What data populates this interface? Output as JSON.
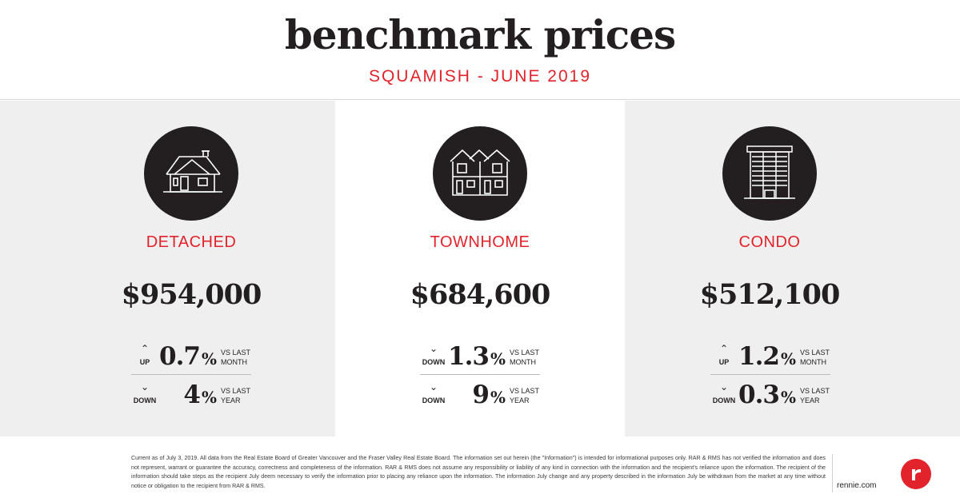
{
  "header": {
    "title": "benchmark prices",
    "subtitle": "SQUAMISH - JUNE 2019"
  },
  "categories": [
    {
      "icon": "detached-house-icon",
      "label": "DETACHED",
      "price": "$954,000",
      "changes": [
        {
          "arrow": "⌃",
          "direction": "UP",
          "value": "0.7",
          "unit": "%",
          "compare": "VS LAST MONTH"
        },
        {
          "arrow": "⌄",
          "direction": "DOWN",
          "value": "4",
          "unit": "%",
          "compare": "VS LAST YEAR"
        }
      ]
    },
    {
      "icon": "townhome-icon",
      "label": "TOWNHOME",
      "price": "$684,600",
      "changes": [
        {
          "arrow": "⌄",
          "direction": "DOWN",
          "value": "1.3",
          "unit": "%",
          "compare": "VS LAST MONTH"
        },
        {
          "arrow": "⌄",
          "direction": "DOWN",
          "value": "9",
          "unit": "%",
          "compare": "VS LAST YEAR"
        }
      ]
    },
    {
      "icon": "condo-building-icon",
      "label": "CONDO",
      "price": "$512,100",
      "changes": [
        {
          "arrow": "⌃",
          "direction": "UP",
          "value": "1.2",
          "unit": "%",
          "compare": "VS LAST MONTH"
        },
        {
          "arrow": "⌄",
          "direction": "DOWN",
          "value": "0.3",
          "unit": "%",
          "compare": "VS LAST YEAR"
        }
      ]
    }
  ],
  "footer": {
    "disclaimer": "Current as of July 3, 2019. All data from the Real Estate Board of Greater Vancouver and the Fraser Valley Real Estate Board. The information set out herein (the \"Information\") is intended for informational purposes only. RAR & RMS has not verified the information and does not represent, warrant or guarantee the accuracy, correctness and completeness of the information. RAR & RMS does not assume any responsibility or liability of any kind in connection with the information and the recipient's reliance upon the information. The recipient of the information should take steps as the recipient July deem necessary to verify the information prior to placing any reliance upon the information. The information July change and any property described in the information July be withdrawn from the market at any time without notice or obligation to the recipient from RAR & RMS.",
    "website": "rennie.com",
    "logo": "rennie-logo-icon"
  },
  "colors": {
    "accent": "#e2232b",
    "dark": "#231f20",
    "panel_gray": "#efefef"
  }
}
